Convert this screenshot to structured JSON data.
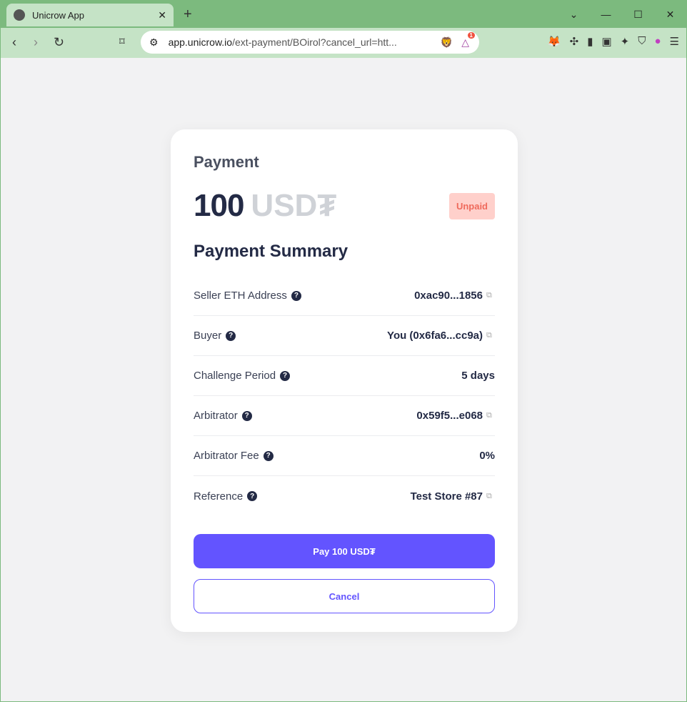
{
  "browser": {
    "tab_title": "Unicrow App",
    "url_host": "app.unicrow.io",
    "url_rest": "/ext-payment/BOirol?cancel_url=htt...",
    "notif_count": "1"
  },
  "card": {
    "title": "Payment",
    "amount": "100",
    "currency": "USD₮",
    "status": "Unpaid",
    "summary_title": "Payment Summary",
    "rows": [
      {
        "label": "Seller ETH Address",
        "value": "0xac90...1856",
        "copy": true
      },
      {
        "label": "Buyer",
        "value": "You (0x6fa6...cc9a)",
        "copy": true
      },
      {
        "label": "Challenge Period",
        "value": "5 days",
        "copy": false
      },
      {
        "label": "Arbitrator",
        "value": "0x59f5...e068",
        "copy": true
      },
      {
        "label": "Arbitrator Fee",
        "value": "0%",
        "copy": false
      },
      {
        "label": "Reference",
        "value": "Test Store #87",
        "copy": true
      }
    ],
    "pay_label": "Pay 100 USD₮",
    "cancel_label": "Cancel"
  },
  "colors": {
    "accent": "#6354ff",
    "status_bg": "#ffd0cb",
    "status_fg": "#ef6a5c"
  }
}
